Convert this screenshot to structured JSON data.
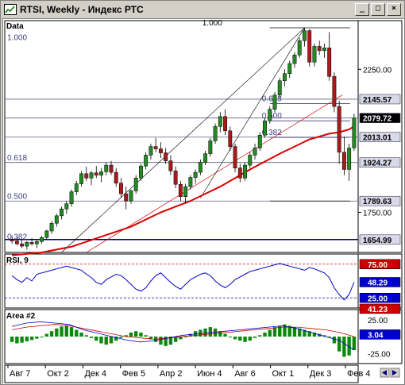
{
  "window": {
    "title": "RTSI, Weekly - Индекс РТС",
    "buttons": {
      "minimize": "_",
      "maximize": "□",
      "close": "×"
    }
  },
  "chart_data": {
    "type": "candlestick",
    "price_panel": {
      "label": "Data",
      "ylim": [
        1610,
        2420
      ],
      "y_ticks": [
        {
          "v": 2250,
          "label": "2250.00"
        },
        {
          "v": 1750,
          "label": "1750.00"
        }
      ],
      "price_tags": [
        {
          "v": 2145.57,
          "label": "2145.57",
          "style": "plain"
        },
        {
          "v": 2079.72,
          "label": "2079.72",
          "style": "current"
        },
        {
          "v": 2013.01,
          "label": "2013.01",
          "style": "plain"
        },
        {
          "v": 1924.27,
          "label": "1924.27",
          "style": "plain"
        },
        {
          "v": 1789.63,
          "label": "1789.63",
          "style": "plain"
        },
        {
          "v": 1654.99,
          "label": "1654.99",
          "style": "plain"
        }
      ],
      "fib_levels": [
        {
          "label": "1.000",
          "v": 2395
        },
        {
          "label": "0.618",
          "v": 2130
        },
        {
          "label": "0.500",
          "v": 2070
        },
        {
          "label": "0.382",
          "v": 2012
        }
      ],
      "left_fib_levels": [
        {
          "label": "1.000",
          "v": 2385
        },
        {
          "label": "0.618",
          "v": 1924
        },
        {
          "label": "0.500",
          "v": 1789
        },
        {
          "label": "0.382",
          "v": 1648
        }
      ],
      "candles": [
        [
          1655,
          1670,
          1640,
          1650
        ],
        [
          1650,
          1662,
          1635,
          1640
        ],
        [
          1640,
          1655,
          1625,
          1632
        ],
        [
          1632,
          1650,
          1620,
          1645
        ],
        [
          1645,
          1660,
          1635,
          1640
        ],
        [
          1640,
          1655,
          1625,
          1648
        ],
        [
          1648,
          1668,
          1640,
          1662
        ],
        [
          1662,
          1690,
          1655,
          1685
        ],
        [
          1685,
          1720,
          1675,
          1712
        ],
        [
          1712,
          1745,
          1700,
          1738
        ],
        [
          1738,
          1770,
          1725,
          1762
        ],
        [
          1762,
          1790,
          1745,
          1780
        ],
        [
          1780,
          1830,
          1770,
          1822
        ],
        [
          1822,
          1860,
          1810,
          1850
        ],
        [
          1850,
          1895,
          1840,
          1885
        ],
        [
          1885,
          1910,
          1860,
          1870
        ],
        [
          1870,
          1895,
          1845,
          1888
        ],
        [
          1888,
          1912,
          1870,
          1880
        ],
        [
          1880,
          1905,
          1855,
          1892
        ],
        [
          1892,
          1925,
          1880,
          1915
        ],
        [
          1915,
          1930,
          1880,
          1890
        ],
        [
          1890,
          1905,
          1840,
          1852
        ],
        [
          1852,
          1870,
          1800,
          1815
        ],
        [
          1815,
          1840,
          1760,
          1790
        ],
        [
          1790,
          1830,
          1780,
          1825
        ],
        [
          1825,
          1880,
          1815,
          1870
        ],
        [
          1870,
          1920,
          1860,
          1912
        ],
        [
          1912,
          1960,
          1900,
          1950
        ],
        [
          1950,
          1990,
          1935,
          1980
        ],
        [
          1980,
          2010,
          1960,
          1972
        ],
        [
          1972,
          1995,
          1940,
          1958
        ],
        [
          1958,
          1975,
          1920,
          1930
        ],
        [
          1930,
          1950,
          1880,
          1895
        ],
        [
          1895,
          1910,
          1835,
          1848
        ],
        [
          1848,
          1860,
          1790,
          1805
        ],
        [
          1805,
          1850,
          1780,
          1840
        ],
        [
          1840,
          1880,
          1830,
          1872
        ],
        [
          1872,
          1900,
          1850,
          1890
        ],
        [
          1890,
          1935,
          1880,
          1925
        ],
        [
          1925,
          1965,
          1915,
          1955
        ],
        [
          1955,
          2010,
          1945,
          2000
        ],
        [
          2000,
          2060,
          1990,
          2050
        ],
        [
          2050,
          2100,
          2030,
          2085
        ],
        [
          2085,
          2110,
          2020,
          2035
        ],
        [
          2035,
          2050,
          1965,
          1980
        ],
        [
          1980,
          1990,
          1890,
          1905
        ],
        [
          1905,
          1920,
          1855,
          1870
        ],
        [
          1870,
          1925,
          1860,
          1915
        ],
        [
          1915,
          1960,
          1905,
          1950
        ],
        [
          1950,
          1990,
          1935,
          1975
        ],
        [
          1975,
          2030,
          1965,
          2020
        ],
        [
          2020,
          2080,
          2010,
          2070
        ],
        [
          2070,
          2120,
          2060,
          2110
        ],
        [
          2110,
          2170,
          2100,
          2160
        ],
        [
          2160,
          2220,
          2150,
          2210
        ],
        [
          2210,
          2250,
          2190,
          2235
        ],
        [
          2235,
          2280,
          2220,
          2270
        ],
        [
          2270,
          2310,
          2255,
          2300
        ],
        [
          2300,
          2360,
          2290,
          2350
        ],
        [
          2350,
          2395,
          2330,
          2385
        ],
        [
          2385,
          2390,
          2260,
          2275
        ],
        [
          2275,
          2340,
          2260,
          2330
        ],
        [
          2330,
          2350,
          2300,
          2315
        ],
        [
          2315,
          2340,
          2290,
          2325
        ],
        [
          2325,
          2380,
          2210,
          2225
        ],
        [
          2225,
          2240,
          2100,
          2120
        ],
        [
          2120,
          2140,
          1920,
          1960
        ],
        [
          1960,
          2015,
          1880,
          1900
        ],
        [
          1900,
          1990,
          1860,
          1975
        ],
        [
          1975,
          2095,
          1965,
          2079.72
        ]
      ],
      "moving_average": [
        [
          0,
          1600
        ],
        [
          6,
          1610
        ],
        [
          12,
          1630
        ],
        [
          18,
          1665
        ],
        [
          24,
          1700
        ],
        [
          30,
          1750
        ],
        [
          36,
          1790
        ],
        [
          42,
          1840
        ],
        [
          48,
          1900
        ],
        [
          54,
          1955
        ],
        [
          60,
          2005
        ],
        [
          64,
          2025
        ],
        [
          66,
          2030
        ],
        [
          68,
          2040
        ],
        [
          69,
          2050
        ]
      ]
    },
    "rsi_panel": {
      "label": "RSI, 9",
      "ylim": [
        10,
        90
      ],
      "levels": [
        75,
        25
      ],
      "tags": [
        {
          "v": 75,
          "label": "75.00",
          "color": "#cc0000"
        },
        {
          "v": 48.29,
          "label": "48.29",
          "color": "#0000cc"
        },
        {
          "v": 25,
          "label": "25.00",
          "color": "#0000cc"
        }
      ],
      "values": [
        58,
        52,
        48,
        55,
        50,
        60,
        62,
        64,
        66,
        68,
        70,
        72,
        70,
        68,
        66,
        60,
        55,
        48,
        45,
        52,
        56,
        60,
        58,
        52,
        45,
        38,
        35,
        40,
        50,
        58,
        62,
        55,
        48,
        42,
        38,
        45,
        52,
        56,
        60,
        62,
        58,
        50,
        44,
        40,
        45,
        52,
        56,
        60,
        64,
        66,
        68,
        70,
        72,
        74,
        76,
        74,
        72,
        70,
        68,
        66,
        70,
        68,
        65,
        62,
        55,
        40,
        30,
        22,
        30,
        48.29
      ]
    },
    "area_panel": {
      "label": "Area #2",
      "ylim": [
        -40,
        40
      ],
      "tags": [
        {
          "v": 41.23,
          "label": "41.23",
          "color": "#cc0000"
        },
        {
          "v": 25,
          "label": "25.00",
          "color": "#000000"
        },
        {
          "v": 3.04,
          "label": "3.04",
          "color": "#0000cc"
        },
        {
          "v": -25,
          "label": "-25.00",
          "color": "#000000"
        }
      ],
      "histogram": [
        -8,
        -10,
        -9,
        -7,
        -5,
        -3,
        0,
        4,
        8,
        12,
        15,
        16,
        14,
        10,
        6,
        2,
        -2,
        -6,
        -10,
        -12,
        -10,
        -6,
        -2,
        2,
        6,
        8,
        6,
        2,
        -4,
        -8,
        -12,
        -14,
        -12,
        -8,
        -4,
        0,
        4,
        8,
        10,
        12,
        14,
        12,
        8,
        4,
        0,
        -4,
        -6,
        -8,
        -6,
        -2,
        2,
        6,
        10,
        14,
        16,
        18,
        16,
        14,
        12,
        10,
        8,
        6,
        4,
        2,
        0,
        -10,
        -22,
        -30,
        -28,
        -20
      ],
      "line_blue": [
        15,
        20,
        22,
        20,
        18,
        10,
        5,
        0,
        -5,
        -8,
        -6,
        -2,
        2,
        4,
        6,
        8,
        10,
        12,
        14,
        16,
        12,
        6,
        0,
        -6,
        -20
      ],
      "line_red": [
        10,
        14,
        16,
        18,
        16,
        12,
        8,
        4,
        0,
        -2,
        -4,
        -2,
        0,
        2,
        4,
        6,
        8,
        10,
        12,
        14,
        14,
        12,
        10,
        6,
        0
      ]
    },
    "x_axis": {
      "labels": [
        "Авг 7",
        "Окт 2",
        "Дек 4",
        "Фев 5",
        "Апр 2",
        "Июн 4",
        "Авг 6",
        "Окт 1",
        "Дек 3",
        "Фев 4"
      ]
    }
  }
}
